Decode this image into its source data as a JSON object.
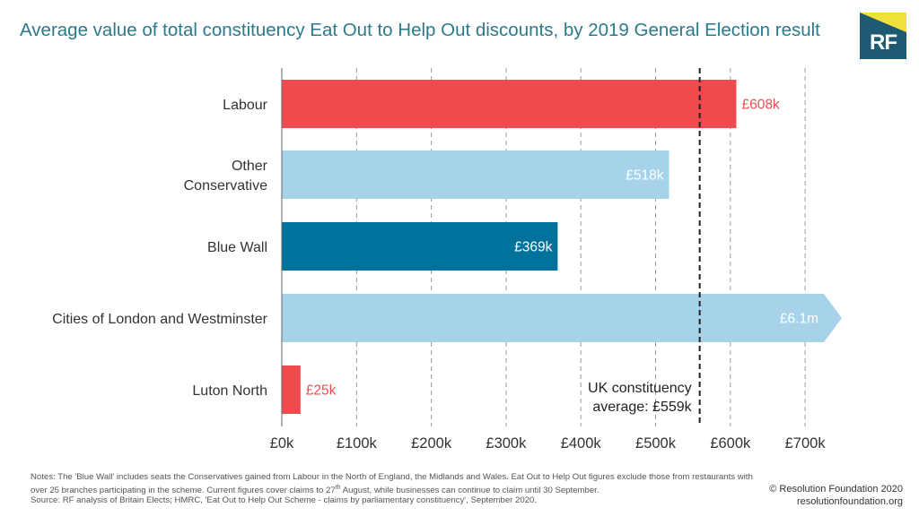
{
  "colors": {
    "labour": "#ef4b4f",
    "other_conservative": "#a7d3ea",
    "blue_wall": "#00729c",
    "title": "#2a7a8c",
    "grid": "#999999"
  },
  "logo": {
    "text": "RF"
  },
  "chart_data": {
    "type": "bar",
    "orientation": "horizontal",
    "title": "Average value of total constituency Eat Out to Help Out discounts, by 2019 General Election result",
    "xlabel": "",
    "ylabel": "",
    "xlim": [
      0,
      700
    ],
    "x_ticks": [
      0,
      100,
      200,
      300,
      400,
      500,
      600,
      700
    ],
    "x_tick_labels": [
      "£0k",
      "£100k",
      "£200k",
      "£300k",
      "£400k",
      "£500k",
      "£600k",
      "£700k"
    ],
    "grid": "vertical-dashed",
    "categories": [
      "Labour",
      "Other Conservative",
      "Blue Wall",
      "Cities of London and Westminster",
      "Luton North"
    ],
    "values": [
      608,
      518,
      369,
      6100,
      25
    ],
    "value_labels": [
      "£608k",
      "£518k",
      "£369k",
      "£6.1m",
      "£25k"
    ],
    "bar_colors": [
      "#ef4b4f",
      "#a7d3ea",
      "#00729c",
      "#a7d3ea",
      "#ef4b4f"
    ],
    "label_positions": [
      "outside",
      "inside",
      "inside",
      "inside",
      "outside"
    ],
    "truncated": [
      false,
      false,
      false,
      true,
      false
    ],
    "reference_line": {
      "value": 559,
      "style": "dashed",
      "label_lines": [
        "UK constituency",
        "average: £559k"
      ]
    }
  },
  "notes": {
    "part1": "Notes: The 'Blue Wall' includes seats the Conservatives gained from Labour in the North of England, the Midlands and Wales. Eat Out to Help Out figures exclude those from restaurants with over 25 branches participating in the scheme. Current figures cover claims to 27",
    "sup": "th",
    "part2": " August, while businesses can continue to claim until 30 September.",
    "source": "Source: RF analysis of Britain Elects; HMRC, 'Eat Out to Help Out Scheme - claims by parliamentary constituency', September 2020."
  },
  "copyright": {
    "line1": "© Resolution Foundation 2020",
    "line2": "resolutionfoundation.org"
  }
}
